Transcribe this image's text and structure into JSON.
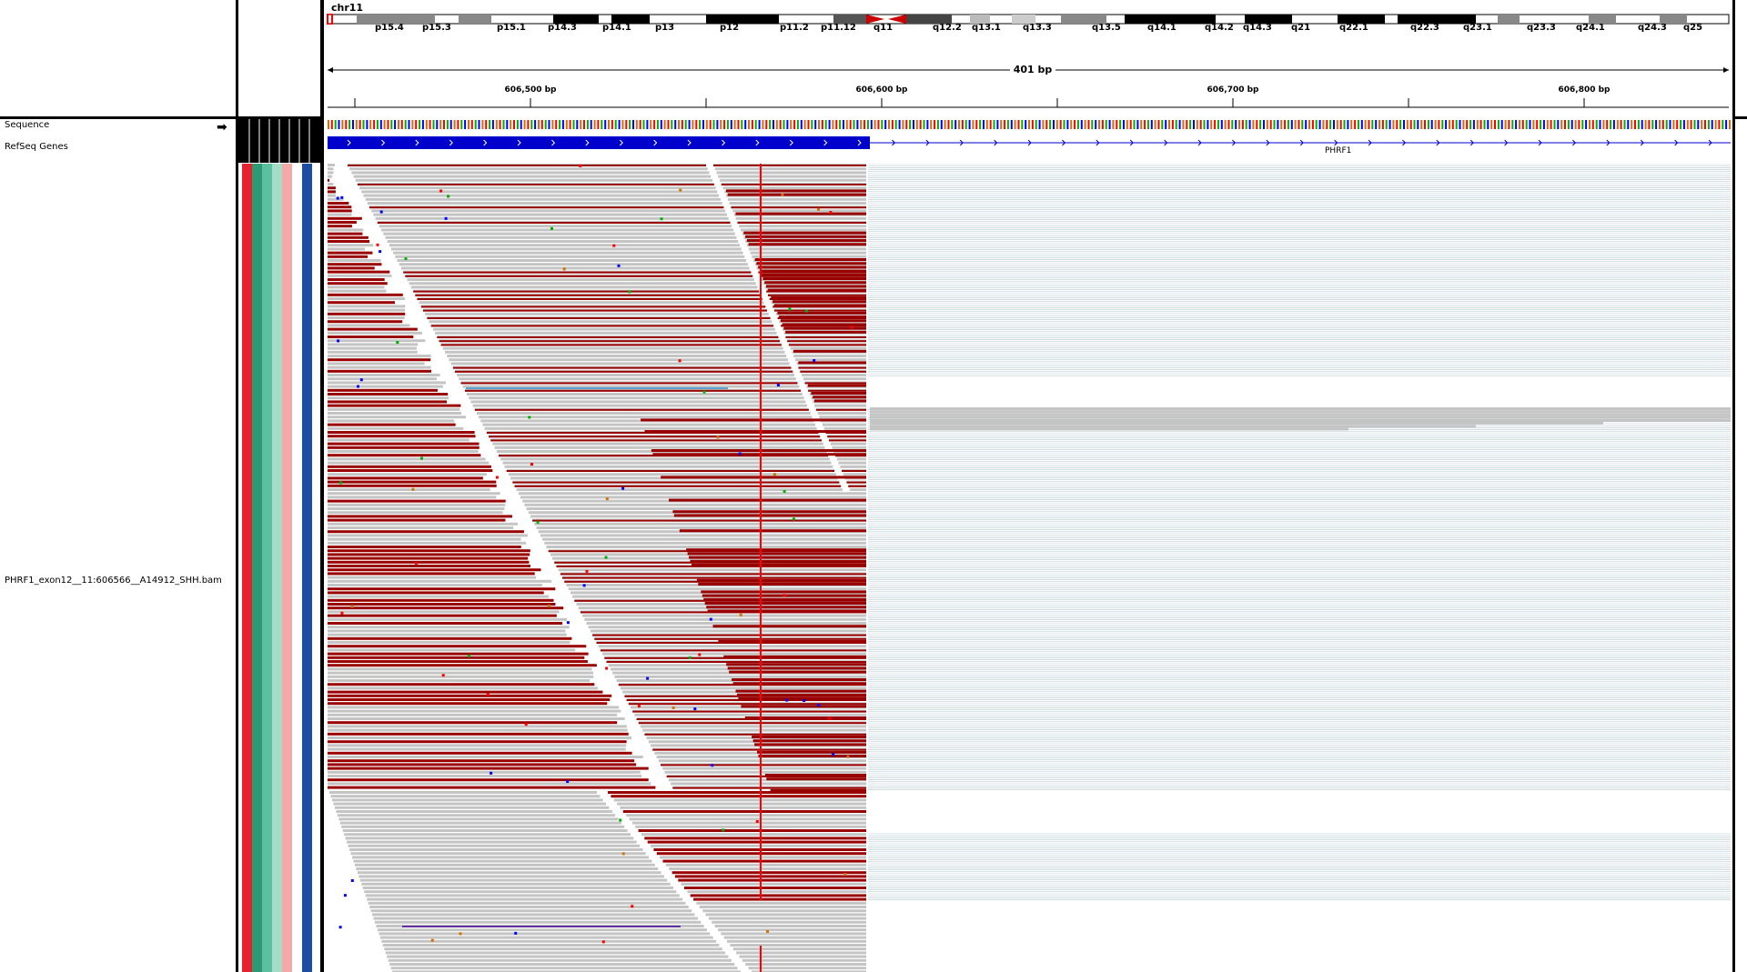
{
  "ideogram": {
    "chromosome": "chr11",
    "bands": [
      {
        "name": "p15.4",
        "x": 70
      },
      {
        "name": "p15.3",
        "x": 122
      },
      {
        "name": "p15.1",
        "x": 204
      },
      {
        "name": "p14.3",
        "x": 260
      },
      {
        "name": "p14.1",
        "x": 320
      },
      {
        "name": "p13",
        "x": 378
      },
      {
        "name": "p12",
        "x": 449
      },
      {
        "name": "p11.2",
        "x": 515
      },
      {
        "name": "p11.12",
        "x": 560
      },
      {
        "name": "q11",
        "x": 618
      },
      {
        "name": "q12.2",
        "x": 683
      },
      {
        "name": "q13.1",
        "x": 726
      },
      {
        "name": "q13.3",
        "x": 782
      },
      {
        "name": "q13.5",
        "x": 858
      },
      {
        "name": "q14.1",
        "x": 919
      },
      {
        "name": "q14.2",
        "x": 982
      },
      {
        "name": "q14.3",
        "x": 1024
      },
      {
        "name": "q21",
        "x": 1077
      },
      {
        "name": "q22.1",
        "x": 1130
      },
      {
        "name": "q22.3",
        "x": 1208
      },
      {
        "name": "q23.1",
        "x": 1266
      },
      {
        "name": "q23.3",
        "x": 1336
      },
      {
        "name": "q24.1",
        "x": 1390
      },
      {
        "name": "q24.3",
        "x": 1458
      },
      {
        "name": "q25",
        "x": 1508
      }
    ]
  },
  "ruler": {
    "span_label": "401 bp",
    "ticks": [
      "606,500 bp",
      "606,600 bp",
      "606,700 bp",
      "606,800 bp"
    ]
  },
  "tracks": {
    "sequence_label": "Sequence",
    "refseq_label": "RefSeq Genes",
    "gene_name": "PHRF1",
    "bam_label": "PHRF1_exon12__11:606566__A14912_SHH.bam"
  },
  "colors": {
    "read_gray": "#c4c4c4",
    "softclip_red": "#990000",
    "insertion_line": "#8c1010",
    "gene_blue": "#0000cc",
    "mismatch_red": "#ff0000",
    "coverage_lines": "#b4c8d2",
    "attr_colors": [
      "#e8212e",
      "#2a9b73",
      "#5cc0a0",
      "#a3dcc7",
      "#f4a9a6",
      "#ffffff",
      "#1b4ea3"
    ]
  },
  "icons": {
    "sequence_arrow": "arrow-right-icon"
  }
}
